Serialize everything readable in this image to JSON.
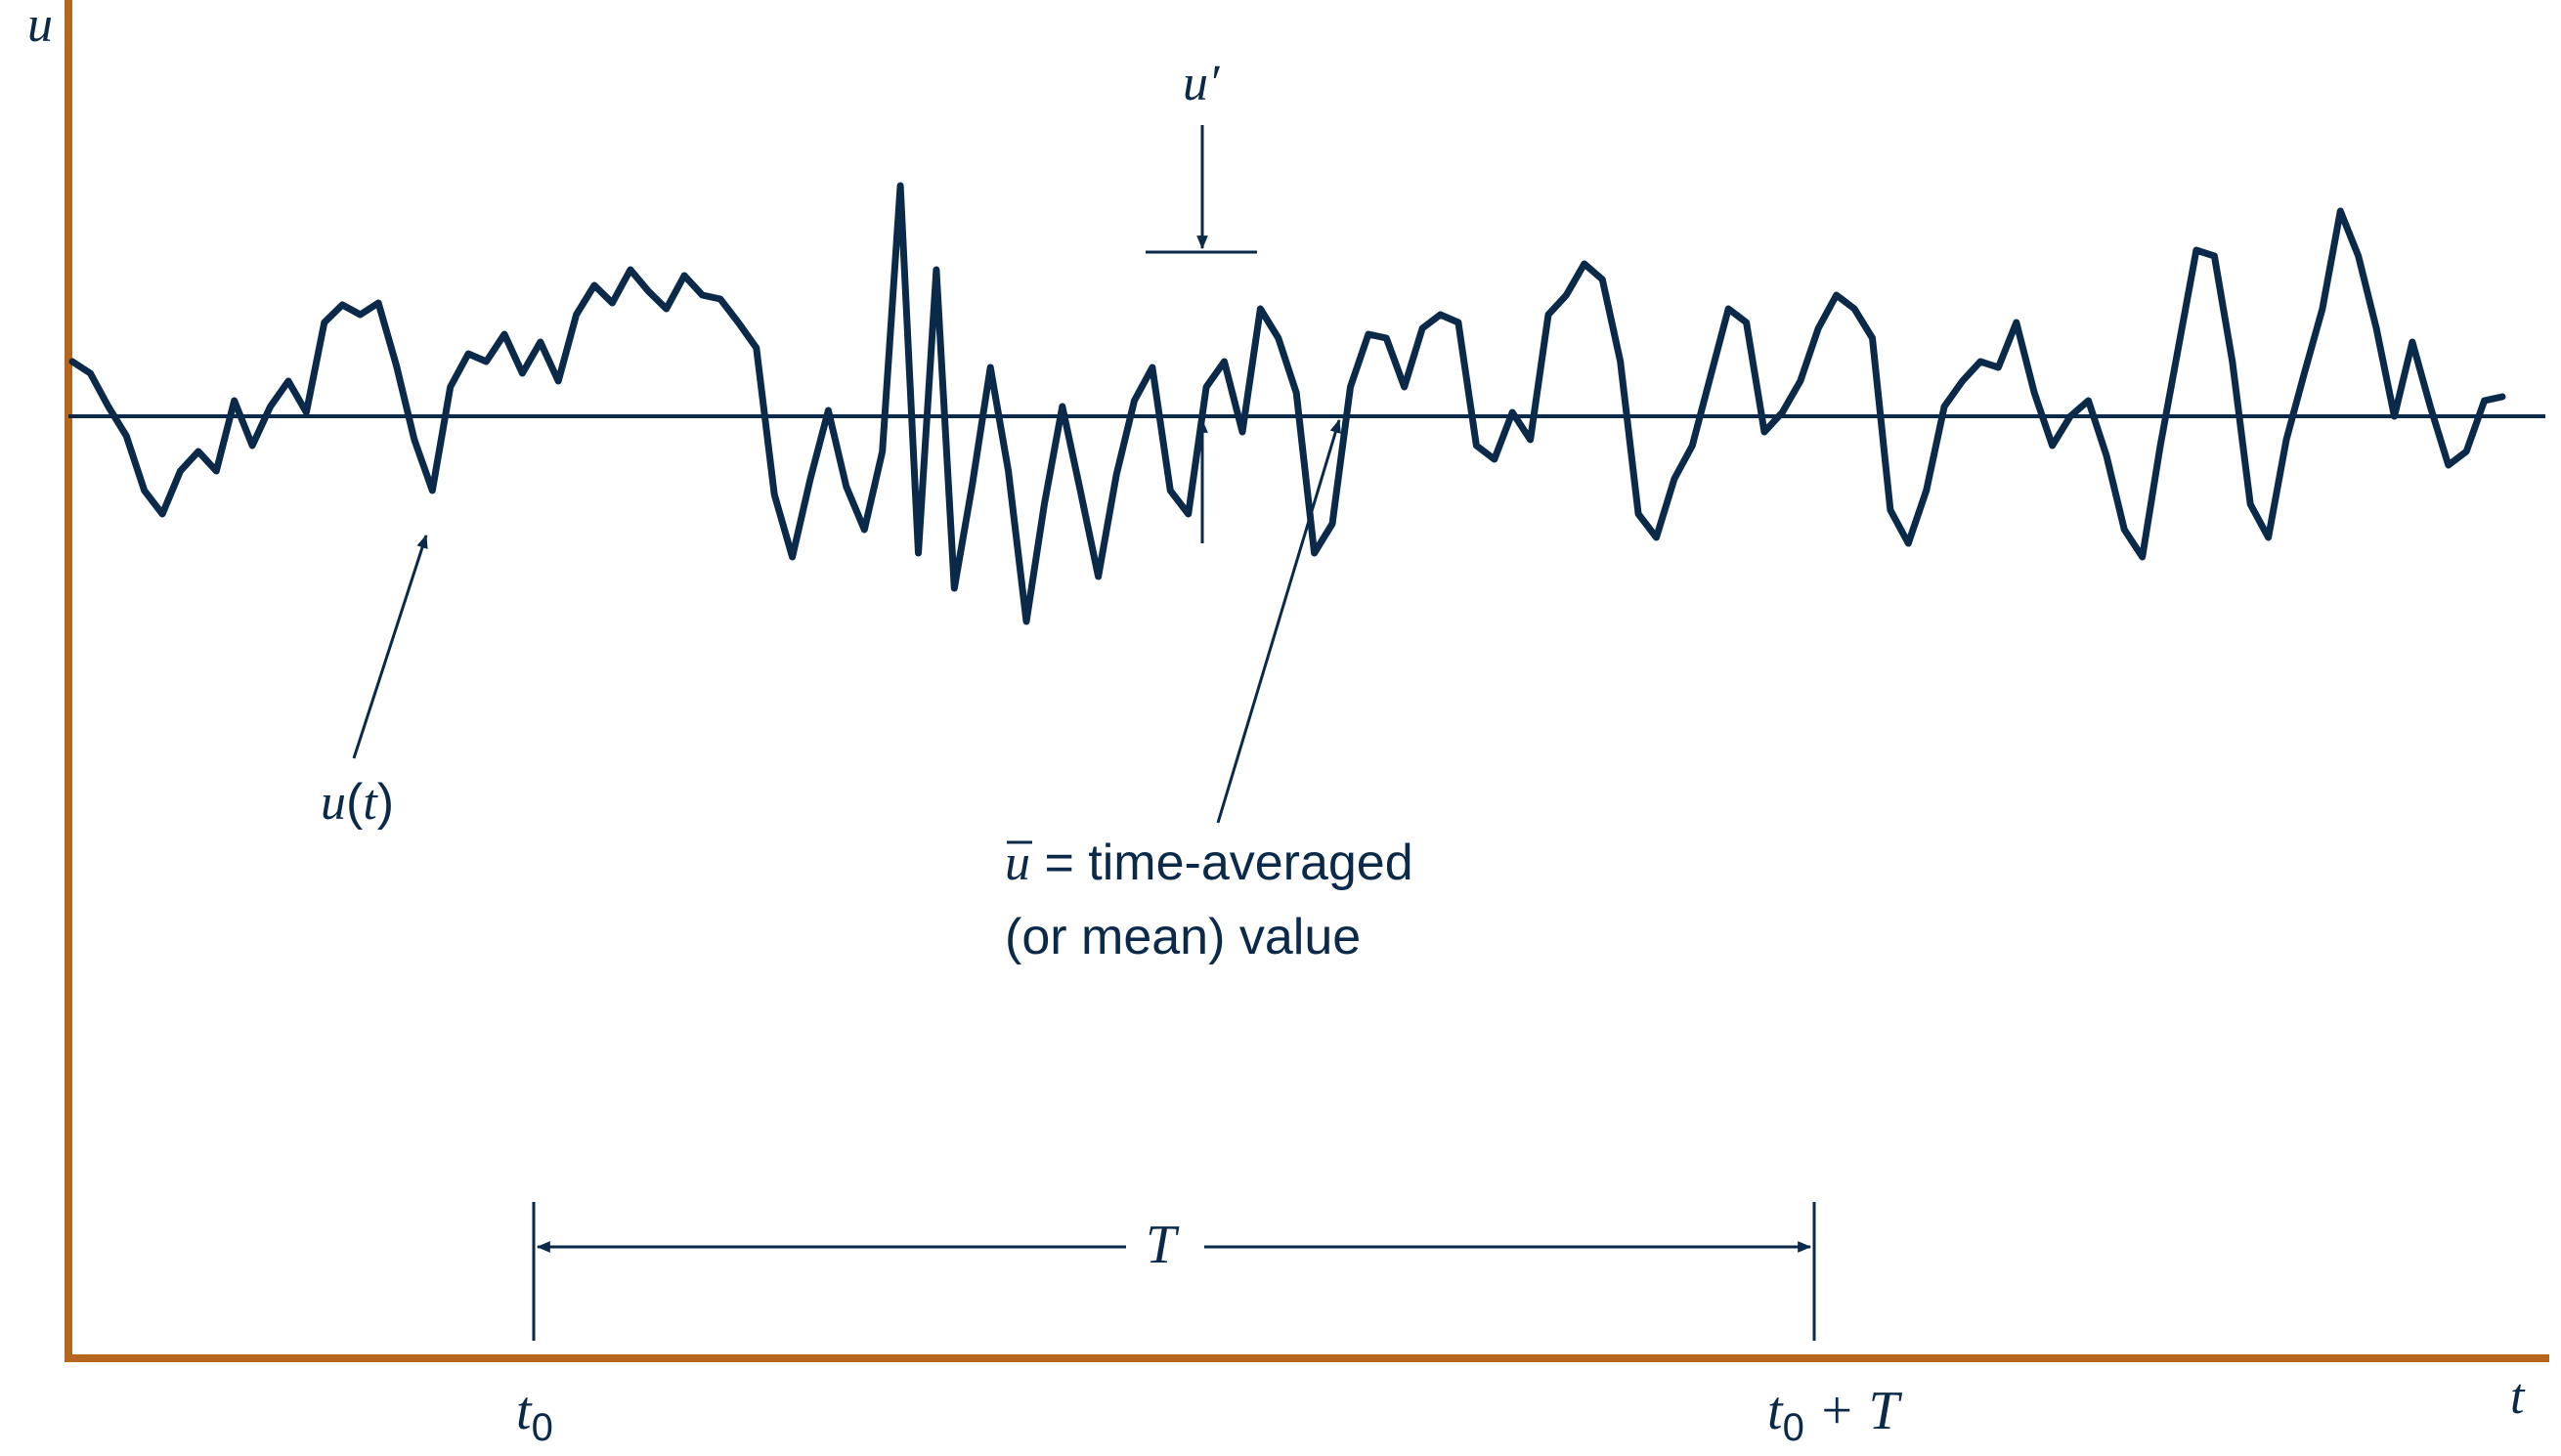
{
  "axes": {
    "y_label": "u",
    "x_label": "t",
    "axis_color": "#B5651D"
  },
  "signal": {
    "label_main": "u",
    "label_paren_open": "(",
    "label_var": "t",
    "label_paren_close": ")",
    "color": "#0B2A4A",
    "fluctuation_label": "u′",
    "samples": [
      0.28,
      0.22,
      0.05,
      -0.1,
      -0.38,
      -0.5,
      -0.28,
      -0.18,
      -0.28,
      0.08,
      -0.15,
      0.05,
      0.18,
      0.02,
      0.48,
      0.57,
      0.52,
      0.58,
      0.26,
      -0.12,
      -0.38,
      0.15,
      0.32,
      0.28,
      0.42,
      0.22,
      0.38,
      0.18,
      0.52,
      0.67,
      0.58,
      0.75,
      0.64,
      0.55,
      0.72,
      0.62,
      0.6,
      0.48,
      0.35,
      -0.4,
      -0.72,
      -0.32,
      0.03,
      -0.36,
      -0.58,
      -0.18,
      1.18,
      -0.7,
      0.75,
      -0.88,
      -0.35,
      0.25,
      -0.28,
      -1.05,
      -0.45,
      0.05,
      -0.38,
      -0.82,
      -0.3,
      0.08,
      0.25,
      -0.38,
      -0.5,
      0.15,
      0.28,
      -0.08,
      0.55,
      0.4,
      0.12,
      -0.7,
      -0.55,
      0.15,
      0.42,
      0.4,
      0.15,
      0.45,
      0.52,
      0.48,
      -0.15,
      -0.22,
      0.02,
      -0.12,
      0.52,
      0.62,
      0.78,
      0.7,
      0.28,
      -0.5,
      -0.62,
      -0.32,
      -0.15,
      0.2,
      0.55,
      0.48,
      -0.08,
      0.02,
      0.18,
      0.45,
      0.62,
      0.55,
      0.4,
      -0.48,
      -0.65,
      -0.38,
      0.05,
      0.18,
      0.28,
      0.25,
      0.48,
      0.12,
      -0.15,
      0.0,
      0.08,
      -0.2,
      -0.58,
      -0.72,
      -0.15,
      0.35,
      0.85,
      0.82,
      0.28,
      -0.45,
      -0.62,
      -0.12,
      0.22,
      0.55,
      1.05,
      0.82,
      0.45,
      0.0,
      0.38,
      0.05,
      -0.25,
      -0.18,
      0.08,
      0.1
    ],
    "mean_level": 0
  },
  "annotations": {
    "mean_label_bar": "u",
    "mean_label_rest": " = time-averaged",
    "mean_label_line2": "(or mean) value",
    "interval_label": "T",
    "t0_main": "t",
    "t0_sub": "0",
    "t0T_main": "t",
    "t0T_sub": "0",
    "t0T_rest": " + T"
  }
}
